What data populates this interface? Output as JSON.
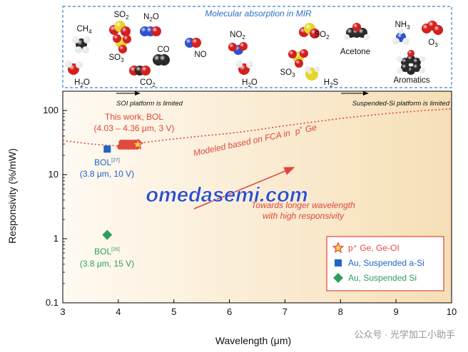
{
  "chart_data": {
    "type": "scatter",
    "title": "",
    "xlabel": "Wavelength (μm)",
    "ylabel": "Responsivity (%/mW)",
    "xlim": [
      3,
      10
    ],
    "ylim": [
      0.1,
      200
    ],
    "yscale": "log",
    "x_ticks": [
      3,
      4,
      5,
      6,
      7,
      8,
      9,
      10
    ],
    "y_ticks": [
      {
        "value": 0.1,
        "label": "0.1"
      },
      {
        "value": 1,
        "label": "1"
      },
      {
        "value": 10,
        "label": "10"
      },
      {
        "value": 100,
        "label": "100"
      }
    ],
    "series": [
      {
        "name": "p⁺ Ge, Ge-OI",
        "marker": "star",
        "color": "#e8463c",
        "points": [
          {
            "x": 4.35,
            "y": 29.5
          }
        ],
        "range": {
          "x_from": 4.03,
          "x_to": 4.36,
          "y_min": 26,
          "y_max": 33
        }
      },
      {
        "name": "Au, Suspended a-Si",
        "marker": "square",
        "color": "#1f64c8",
        "points": [
          {
            "x": 3.8,
            "y": 25
          }
        ]
      },
      {
        "name": "Au, Suspended Si",
        "marker": "diamond",
        "color": "#2e9e5e",
        "points": [
          {
            "x": 3.8,
            "y": 1.15
          }
        ]
      }
    ],
    "model_curve": {
      "name": "Modeled based on FCA in p⁺ Ge",
      "color": "#e0463c",
      "points": [
        [
          3.0,
          34
        ],
        [
          3.5,
          30
        ],
        [
          4.0,
          28
        ],
        [
          4.5,
          32
        ],
        [
          5.0,
          36
        ],
        [
          5.5,
          40
        ],
        [
          6.0,
          44
        ],
        [
          6.5,
          50
        ],
        [
          7.0,
          58
        ],
        [
          7.5,
          66
        ],
        [
          8.0,
          75
        ],
        [
          8.5,
          84
        ],
        [
          9.0,
          92
        ],
        [
          9.5,
          100
        ],
        [
          10.0,
          106
        ]
      ]
    },
    "annotations": {
      "this_work_l1": "This work, BOL",
      "this_work_l2": "(4.03 – 4.36 μm, 3 V)",
      "model_label": "Modeled based on FCA in",
      "model_label_sup": "p",
      "model_label_sup_mark": "+",
      "model_label_tail": " Ge",
      "bol27_name": "BOL",
      "bol27_ref": "[27]",
      "bol27_cond": "(3.8 μm, 10 V)",
      "bol26_name": "BOL",
      "bol26_ref": "[26]",
      "bol26_cond": "(3.8 μm, 15 V)",
      "trend_l1": "Towards longer wavelength",
      "trend_l2": "with high responsivity",
      "soi_limit": "SOI platform is limited",
      "susp_limit": "Suspended-Si platform is limited"
    },
    "legend_position": "bottom-right"
  },
  "molecules_panel": {
    "title": "Molecular absorption in MIR",
    "molecules": [
      {
        "id": "ch4",
        "label": "CH4"
      },
      {
        "id": "so2-a",
        "label": "SO2"
      },
      {
        "id": "n2o",
        "label": "N2O"
      },
      {
        "id": "so3-a",
        "label": "SO3"
      },
      {
        "id": "co",
        "label": "CO"
      },
      {
        "id": "no",
        "label": "NO"
      },
      {
        "id": "h2o-a",
        "label": "H2O"
      },
      {
        "id": "co2",
        "label": "CO2"
      },
      {
        "id": "no2",
        "label": "NO2"
      },
      {
        "id": "h2o-b",
        "label": "H2O"
      },
      {
        "id": "so2-b",
        "label": "SO2"
      },
      {
        "id": "so3-b",
        "label": "SO3"
      },
      {
        "id": "h2s",
        "label": "H2S"
      },
      {
        "id": "acetone",
        "label": "Acetone"
      },
      {
        "id": "nh3",
        "label": "NH3"
      },
      {
        "id": "o3",
        "label": "O3"
      },
      {
        "id": "aromatics",
        "label": "Aromatics"
      }
    ]
  },
  "watermark": "omedasemi.com",
  "footer_watermark": "公众号 · 光学加工小助手",
  "colors": {
    "red": "#e0463c",
    "blue": "#1f64c8",
    "green": "#2e9e5e",
    "panel_border": "#3a7fd0",
    "watermark": "#1a40c8"
  }
}
